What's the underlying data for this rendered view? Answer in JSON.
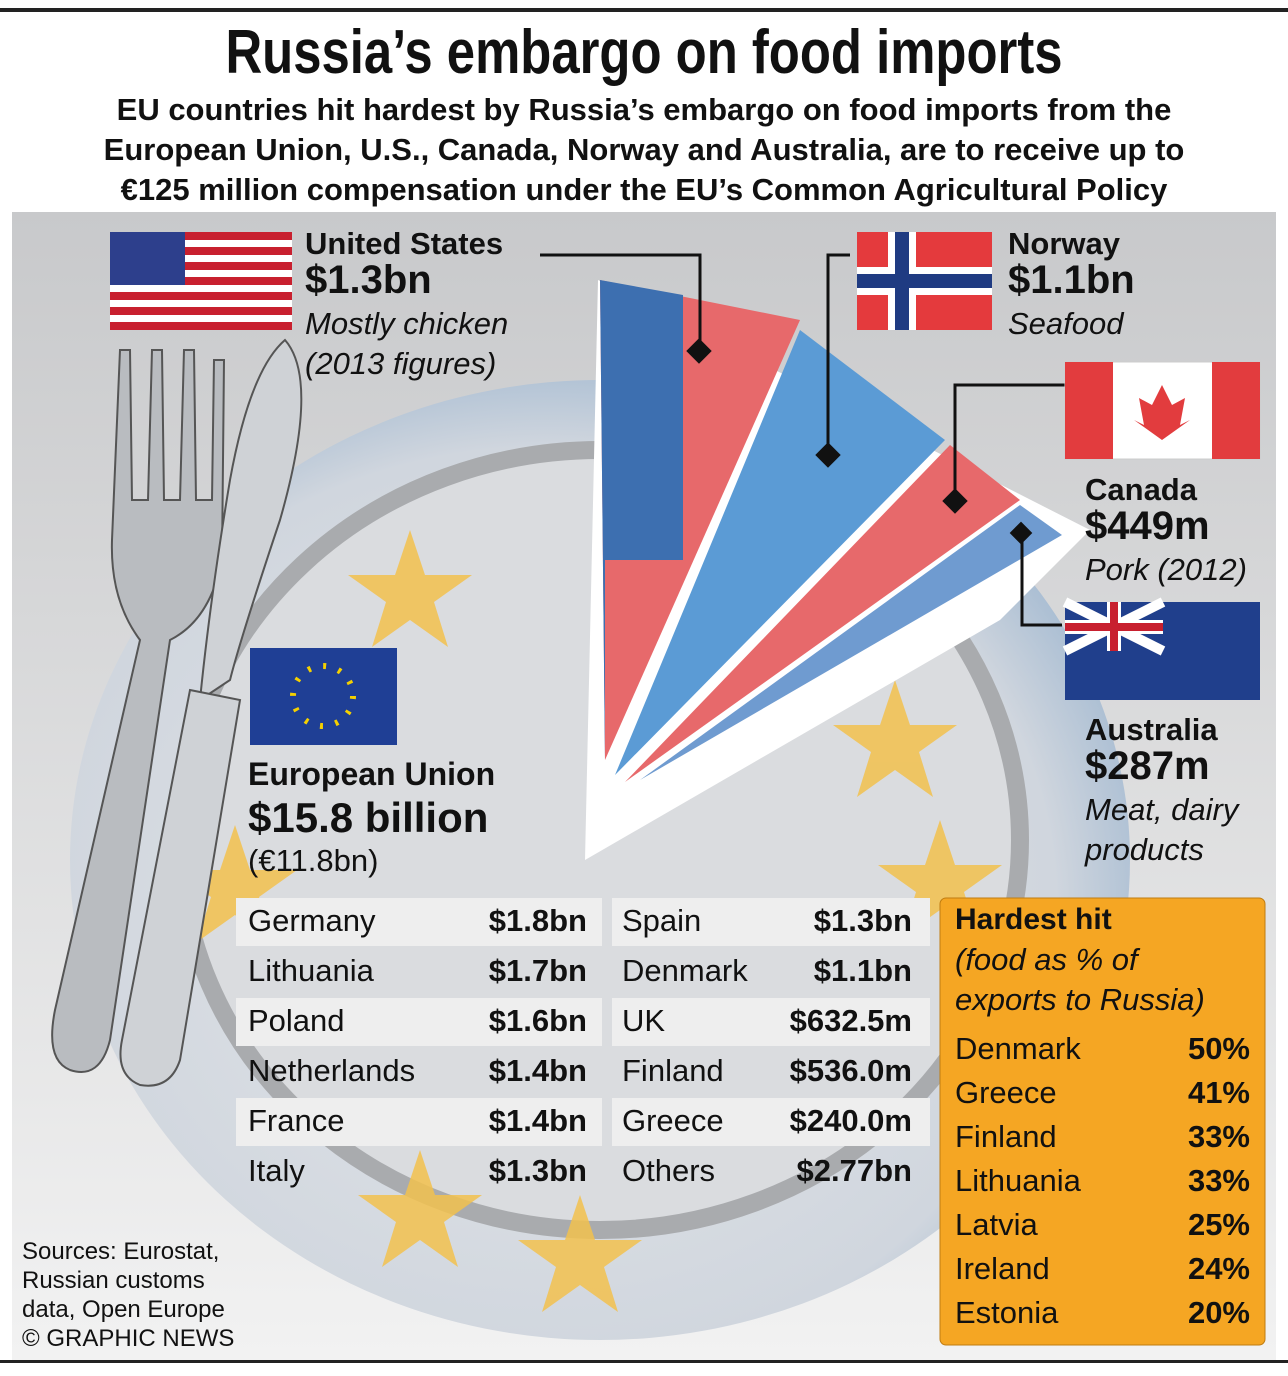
{
  "header": {
    "title": "Russia’s embargo on food imports",
    "subtitle": [
      "EU countries hit hardest by Russia’s embargo on food imports from the",
      "European Union, U.S., Canada, Norway and Australia, are to receive up to",
      "€125 million compensation under the EU’s Common Agricultural Policy"
    ]
  },
  "countries": [
    {
      "name": "United States",
      "value": "$1.3bn",
      "note": [
        "Mostly chicken",
        "(2013 figures)"
      ]
    },
    {
      "name": "Norway",
      "value": "$1.1bn",
      "note": [
        "Seafood"
      ]
    },
    {
      "name": "Canada",
      "value": "$449m",
      "note": [
        "Pork (2012)"
      ]
    },
    {
      "name": "Australia",
      "value": "$287m",
      "note": [
        "Meat, dairy",
        "products"
      ]
    }
  ],
  "eu": {
    "name": "European Union",
    "value": "$15.8 billion",
    "note": "(€11.8bn)"
  },
  "table": {
    "left": [
      [
        "Germany",
        "$1.8bn"
      ],
      [
        "Lithuania",
        "$1.7bn"
      ],
      [
        "Poland",
        "$1.6bn"
      ],
      [
        "Netherlands",
        "$1.4bn"
      ],
      [
        "France",
        "$1.4bn"
      ],
      [
        "Italy",
        "$1.3bn"
      ]
    ],
    "right": [
      [
        "Spain",
        "$1.3bn"
      ],
      [
        "Denmark",
        "$1.1bn"
      ],
      [
        "UK",
        "$632.5m"
      ],
      [
        "Finland",
        "$536.0m"
      ],
      [
        "Greece",
        "$240.0m"
      ],
      [
        "Others",
        "$2.77bn"
      ]
    ]
  },
  "hardest": {
    "title": "Hardest hit",
    "subtitle": [
      "(food as % of",
      "exports to Russia)"
    ],
    "rows": [
      [
        "Denmark",
        "50%"
      ],
      [
        "Greece",
        "41%"
      ],
      [
        "Finland",
        "33%"
      ],
      [
        "Lithuania",
        "33%"
      ],
      [
        "Latvia",
        "25%"
      ],
      [
        "Ireland",
        "24%"
      ],
      [
        "Estonia",
        "20%"
      ]
    ]
  },
  "footer": {
    "sources": [
      "Sources: Eurostat,",
      "Russian customs",
      "data, Open Europe"
    ],
    "credit": "© GRAPHIC NEWS"
  }
}
